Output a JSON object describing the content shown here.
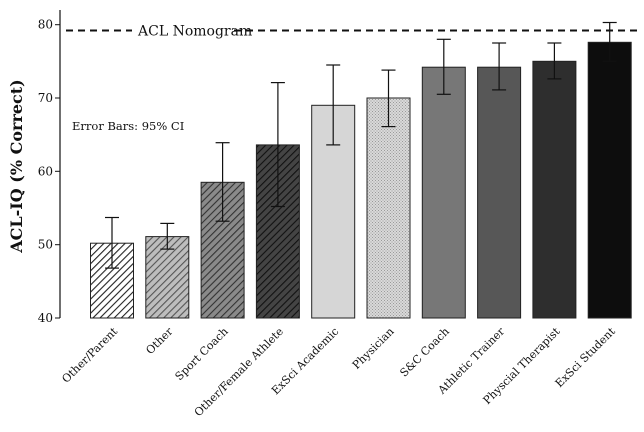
{
  "chart_data": {
    "type": "bar",
    "title": "",
    "xlabel": "",
    "ylabel": "ACL-IQ (% Correct)",
    "ylim": [
      40,
      82
    ],
    "yticks": [
      40,
      50,
      60,
      70,
      80
    ],
    "grid": false,
    "categories": [
      "Other/Parent",
      "Other",
      "Sport Coach",
      "Other/Female Athlete",
      "ExSci Academic",
      "Physician",
      "S&C Coach",
      "Athletic Trainer",
      "Physcial Therapist",
      "ExSci Student"
    ],
    "values": [
      50.2,
      51.1,
      58.5,
      63.6,
      69.0,
      70.0,
      74.2,
      74.2,
      75.0,
      77.6
    ],
    "error_low": [
      46.8,
      49.4,
      53.2,
      55.2,
      63.6,
      66.1,
      70.5,
      71.1,
      72.6,
      75.0
    ],
    "error_high": [
      53.7,
      52.9,
      63.9,
      72.1,
      74.5,
      73.8,
      78.0,
      77.5,
      77.5,
      80.3
    ],
    "bar_styles": [
      {
        "fill": "#ffffff",
        "pattern": "hatch",
        "line_color": "#222222"
      },
      {
        "fill": "#bdbdbd",
        "pattern": "hatch",
        "line_color": "#555555"
      },
      {
        "fill": "#8a8a8a",
        "pattern": "hatch",
        "line_color": "#333333"
      },
      {
        "fill": "#444444",
        "pattern": "hatch",
        "line_color": "#111111"
      },
      {
        "fill": "#d6d6d6",
        "pattern": "none",
        "line_color": ""
      },
      {
        "fill": "#d9d9d9",
        "pattern": "dots",
        "line_color": "#9a9a9a"
      },
      {
        "fill": "#777777",
        "pattern": "none",
        "line_color": ""
      },
      {
        "fill": "#575757",
        "pattern": "none",
        "line_color": ""
      },
      {
        "fill": "#2e2e2e",
        "pattern": "none",
        "line_color": ""
      },
      {
        "fill": "#0d0d0d",
        "pattern": "none",
        "line_color": ""
      }
    ],
    "reference_line": {
      "value": 79.2,
      "label": "ACL Nomogram",
      "style": "dashed"
    },
    "annotation": "Error Bars: 95% CI"
  }
}
